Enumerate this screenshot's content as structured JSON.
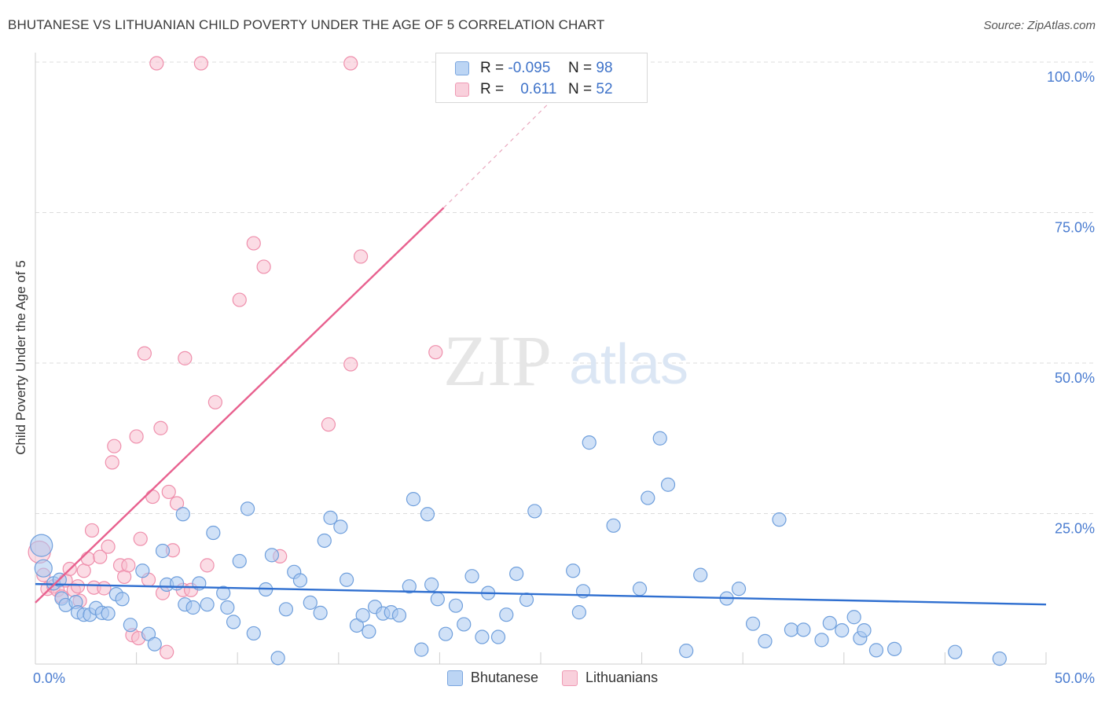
{
  "title": "BHUTANESE VS LITHUANIAN CHILD POVERTY UNDER THE AGE OF 5 CORRELATION CHART",
  "source": "Source: ZipAtlas.com",
  "watermark": {
    "zip": "ZIP",
    "atlas": "atlas"
  },
  "legend": {
    "rows": [
      {
        "r_label": "R =",
        "r_value": "-0.095",
        "n_label": "N =",
        "n_value": "98",
        "color": "#a9c8f0"
      },
      {
        "r_label": "R =",
        "r_value": "0.611",
        "n_label": "N =",
        "n_value": "52",
        "color": "#f7bfd0"
      }
    ]
  },
  "chart_data": {
    "type": "scatter",
    "title": "BHUTANESE VS LITHUANIAN CHILD POVERTY UNDER THE AGE OF 5 CORRELATION CHART",
    "xlabel": "",
    "ylabel": "Child Poverty Under the Age of 5",
    "xlim": [
      0,
      50
    ],
    "ylim": [
      0,
      100
    ],
    "x_tick_labels": [
      "0.0%",
      "50.0%"
    ],
    "y_tick_labels": [
      "100.0%",
      "75.0%",
      "50.0%",
      "25.0%"
    ],
    "y_ticks": [
      100,
      75,
      50,
      25
    ],
    "grid": true,
    "legend_placement": "bottom",
    "series": [
      {
        "name": "Bhutanese",
        "color": "#a9c8f0",
        "stroke": "#6f9fdc",
        "trend": {
          "x": [
            0,
            50
          ],
          "y": [
            13.3,
            9.9
          ],
          "color": "#2f6fd0"
        },
        "points": [
          [
            0.3,
            19.7
          ],
          [
            0.4,
            15.9
          ],
          [
            0.9,
            13.4
          ],
          [
            1.2,
            14.0
          ],
          [
            1.3,
            10.9
          ],
          [
            1.5,
            9.8
          ],
          [
            2.0,
            10.3
          ],
          [
            2.1,
            8.6
          ],
          [
            2.4,
            8.2
          ],
          [
            2.7,
            8.2
          ],
          [
            3.0,
            9.3
          ],
          [
            3.3,
            8.5
          ],
          [
            3.6,
            8.4
          ],
          [
            4.0,
            11.6
          ],
          [
            4.3,
            10.8
          ],
          [
            4.7,
            6.5
          ],
          [
            5.3,
            15.5
          ],
          [
            5.6,
            5.0
          ],
          [
            5.9,
            3.3
          ],
          [
            6.3,
            18.8
          ],
          [
            6.5,
            13.2
          ],
          [
            7.0,
            13.4
          ],
          [
            7.3,
            24.9
          ],
          [
            7.4,
            9.9
          ],
          [
            7.8,
            9.4
          ],
          [
            8.1,
            13.4
          ],
          [
            8.5,
            9.9
          ],
          [
            8.8,
            21.8
          ],
          [
            9.3,
            11.8
          ],
          [
            9.5,
            9.4
          ],
          [
            9.8,
            7.0
          ],
          [
            10.1,
            17.1
          ],
          [
            10.5,
            25.8
          ],
          [
            10.8,
            5.1
          ],
          [
            11.4,
            12.4
          ],
          [
            11.7,
            18.1
          ],
          [
            12.0,
            1.0
          ],
          [
            12.4,
            9.1
          ],
          [
            12.8,
            15.3
          ],
          [
            13.1,
            13.9
          ],
          [
            13.6,
            10.2
          ],
          [
            14.1,
            8.5
          ],
          [
            14.3,
            20.5
          ],
          [
            14.6,
            24.3
          ],
          [
            15.1,
            22.8
          ],
          [
            15.4,
            14.0
          ],
          [
            15.9,
            6.4
          ],
          [
            16.2,
            8.1
          ],
          [
            16.5,
            5.4
          ],
          [
            16.8,
            9.5
          ],
          [
            17.2,
            8.4
          ],
          [
            17.6,
            8.6
          ],
          [
            18.0,
            8.1
          ],
          [
            18.5,
            12.9
          ],
          [
            18.7,
            27.4
          ],
          [
            19.1,
            2.4
          ],
          [
            19.4,
            24.9
          ],
          [
            19.6,
            13.2
          ],
          [
            19.9,
            10.8
          ],
          [
            20.3,
            5.0
          ],
          [
            20.8,
            9.7
          ],
          [
            21.2,
            6.6
          ],
          [
            21.6,
            14.6
          ],
          [
            22.1,
            4.5
          ],
          [
            22.4,
            11.8
          ],
          [
            22.9,
            4.5
          ],
          [
            23.3,
            8.2
          ],
          [
            23.8,
            15.0
          ],
          [
            24.3,
            10.7
          ],
          [
            24.7,
            25.4
          ],
          [
            26.6,
            15.5
          ],
          [
            26.9,
            8.6
          ],
          [
            27.1,
            12.1
          ],
          [
            27.4,
            36.8
          ],
          [
            28.6,
            23.0
          ],
          [
            29.9,
            12.5
          ],
          [
            30.3,
            27.6
          ],
          [
            30.9,
            37.5
          ],
          [
            31.3,
            29.8
          ],
          [
            32.2,
            2.2
          ],
          [
            32.9,
            14.8
          ],
          [
            34.2,
            10.9
          ],
          [
            34.8,
            12.5
          ],
          [
            35.5,
            6.7
          ],
          [
            36.1,
            3.8
          ],
          [
            36.8,
            24.0
          ],
          [
            37.4,
            5.7
          ],
          [
            38.0,
            5.7
          ],
          [
            38.9,
            4.0
          ],
          [
            39.3,
            6.8
          ],
          [
            39.9,
            5.6
          ],
          [
            40.5,
            7.8
          ],
          [
            40.8,
            4.3
          ],
          [
            41.0,
            5.6
          ],
          [
            41.6,
            2.3
          ],
          [
            42.5,
            2.5
          ],
          [
            45.5,
            2.0
          ],
          [
            47.7,
            0.9
          ]
        ],
        "radii": {
          "0": 14,
          "1": 11
        }
      },
      {
        "name": "Lithuanians",
        "color": "#f7bfd0",
        "stroke": "#ef8fac",
        "trend": {
          "x": [
            0,
            20.2
          ],
          "y": [
            10.2,
            75.8
          ],
          "dashed_to": [
            25.5,
            93.5
          ],
          "color": "#e8618f"
        },
        "points": [
          [
            0.2,
            18.6
          ],
          [
            0.4,
            14.8
          ],
          [
            0.6,
            12.5
          ],
          [
            0.9,
            12.9
          ],
          [
            1.1,
            12.3
          ],
          [
            1.3,
            11.2
          ],
          [
            1.5,
            13.9
          ],
          [
            1.7,
            15.8
          ],
          [
            1.9,
            12.3
          ],
          [
            2.1,
            12.9
          ],
          [
            2.2,
            10.5
          ],
          [
            2.4,
            15.5
          ],
          [
            2.6,
            17.5
          ],
          [
            2.8,
            22.2
          ],
          [
            2.9,
            12.7
          ],
          [
            3.2,
            17.8
          ],
          [
            3.4,
            12.6
          ],
          [
            3.6,
            19.5
          ],
          [
            3.8,
            33.5
          ],
          [
            3.9,
            36.2
          ],
          [
            4.2,
            16.4
          ],
          [
            4.4,
            14.5
          ],
          [
            4.6,
            16.4
          ],
          [
            4.8,
            4.8
          ],
          [
            5.0,
            37.8
          ],
          [
            5.1,
            4.3
          ],
          [
            5.2,
            20.8
          ],
          [
            5.4,
            51.6
          ],
          [
            5.6,
            14.0
          ],
          [
            5.8,
            27.8
          ],
          [
            6.0,
            99.8
          ],
          [
            6.2,
            39.2
          ],
          [
            6.3,
            11.8
          ],
          [
            6.5,
            2.0
          ],
          [
            6.6,
            28.6
          ],
          [
            6.8,
            18.9
          ],
          [
            7.0,
            26.7
          ],
          [
            7.3,
            12.3
          ],
          [
            7.4,
            50.8
          ],
          [
            7.7,
            12.3
          ],
          [
            8.2,
            99.8
          ],
          [
            8.5,
            16.4
          ],
          [
            8.9,
            43.5
          ],
          [
            10.8,
            69.9
          ],
          [
            11.3,
            66.0
          ],
          [
            10.1,
            60.5
          ],
          [
            12.1,
            17.9
          ],
          [
            14.5,
            39.8
          ],
          [
            15.6,
            99.8
          ],
          [
            15.6,
            49.8
          ],
          [
            16.1,
            67.7
          ],
          [
            19.8,
            51.8
          ]
        ],
        "radii": {
          "0": 14
        }
      }
    ]
  },
  "bottom_legend": [
    {
      "label": "Bhutanese",
      "color": "#a9c8f0"
    },
    {
      "label": "Lithuanians",
      "color": "#f7bfd0"
    }
  ]
}
